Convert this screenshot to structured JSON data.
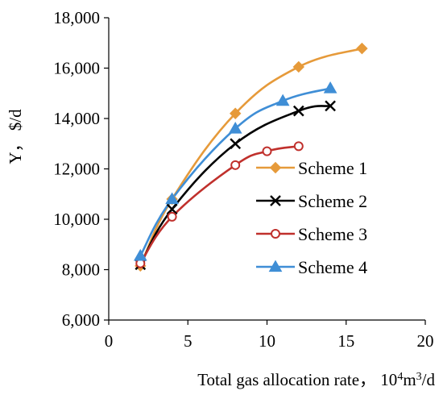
{
  "chart_data": {
    "type": "line",
    "xlabel_main": "Total gas allocation rate， 10",
    "xlabel_sup1": "4",
    "xlabel_mid": "m",
    "xlabel_sup2": "3",
    "xlabel_end": "/d",
    "ylabel": "Y， $/d",
    "xlim": [
      0,
      20
    ],
    "ylim": [
      6000,
      18000
    ],
    "x_ticks": [
      0,
      5,
      10,
      15,
      20
    ],
    "x_tick_labels": [
      "0",
      "5",
      "10",
      "15",
      "20"
    ],
    "y_ticks": [
      6000,
      8000,
      10000,
      12000,
      14000,
      16000,
      18000
    ],
    "y_tick_labels": [
      "6,000",
      "8,000",
      "10,000",
      "12,000",
      "14,000",
      "16,000",
      "18,000"
    ],
    "grid": false,
    "legend_position": "right-center",
    "series": [
      {
        "name": "Scheme 1",
        "color": "#e69a3a",
        "marker": "diamond",
        "x": [
          2,
          4,
          8,
          12,
          16
        ],
        "y": [
          8150,
          10800,
          14200,
          16050,
          16780
        ]
      },
      {
        "name": "Scheme 2",
        "color": "#000000",
        "marker": "x",
        "x": [
          2,
          4,
          8,
          12,
          14
        ],
        "y": [
          8200,
          10400,
          13000,
          14300,
          14500
        ]
      },
      {
        "name": "Scheme 3",
        "color": "#c0302c",
        "marker": "circle",
        "x": [
          2,
          4,
          8,
          10,
          12
        ],
        "y": [
          8250,
          10100,
          12150,
          12700,
          12900
        ]
      },
      {
        "name": "Scheme 4",
        "color": "#3f8ed6",
        "marker": "triangle",
        "x": [
          2,
          4,
          8,
          11,
          14
        ],
        "y": [
          8550,
          10800,
          13600,
          14700,
          15200
        ]
      }
    ]
  }
}
